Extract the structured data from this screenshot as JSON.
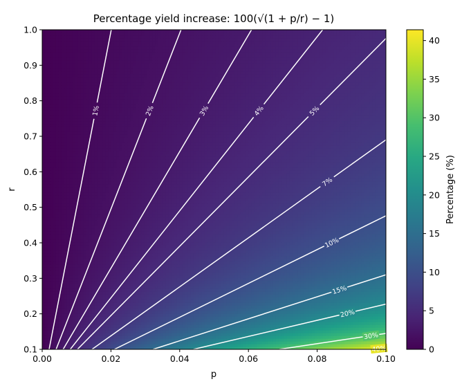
{
  "chart_data": {
    "type": "heatmap",
    "title": "Percentage yield increase: 100(√(1 + p/r) − 1)",
    "title_prefix": "Percentage yield increase: ",
    "title_formula": "100(√(1 + p/r) − 1)",
    "xlabel": "p",
    "ylabel": "r",
    "xlim": [
      0.0,
      0.1
    ],
    "ylim": [
      0.1,
      1.0
    ],
    "x_ticks": [
      "0.00",
      "0.02",
      "0.04",
      "0.06",
      "0.08",
      "0.10"
    ],
    "y_ticks": [
      "0.1",
      "0.2",
      "0.3",
      "0.4",
      "0.5",
      "0.6",
      "0.7",
      "0.8",
      "0.9",
      "1.0"
    ],
    "formula": "100*(sqrt(1+p/r)-1)",
    "colormap": "viridis",
    "contour_levels": [
      1,
      2,
      3,
      4,
      5,
      7,
      10,
      15,
      20,
      30,
      40
    ],
    "contour_labels": [
      "1%",
      "2%",
      "3%",
      "4%",
      "5%",
      "7%",
      "10%",
      "15%",
      "20%",
      "30%",
      "40%"
    ],
    "contour_color": "#ffffff",
    "colorbar": {
      "label": "Percentage (%)",
      "range": [
        0,
        41.4
      ],
      "ticks": [
        "0",
        "5",
        "10",
        "15",
        "20",
        "25",
        "30",
        "35",
        "40"
      ]
    },
    "grid": false,
    "legend": "none"
  }
}
